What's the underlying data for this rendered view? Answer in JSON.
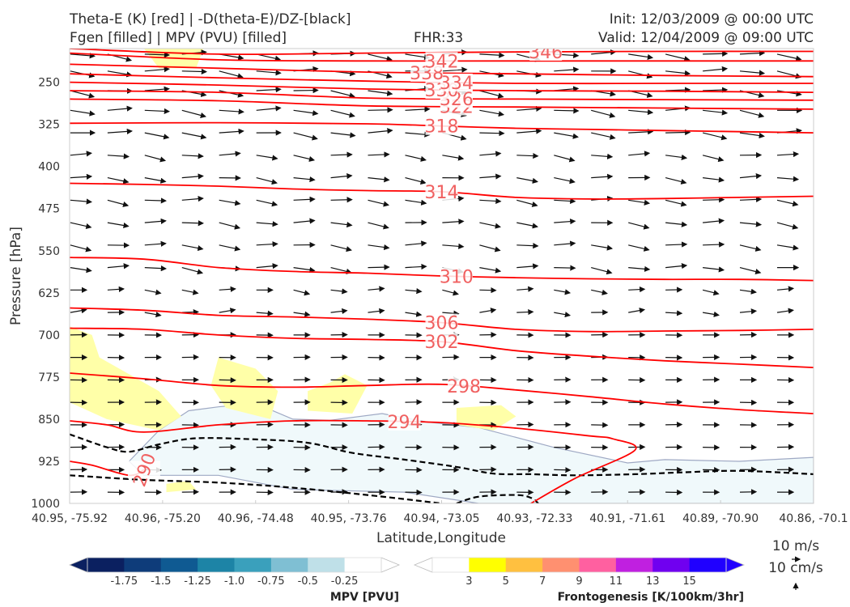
{
  "header": {
    "title_line1": "Theta-E (K) [red] | -D(theta-E)/DZ-[black]",
    "title_line2": "Fgen [filled] | MPV (PVU) [filled]",
    "fhr": "FHR:33",
    "init": "Init: 12/03/2009 @ 00:00 UTC",
    "valid": "Valid: 12/04/2009 @ 09:00 UTC"
  },
  "chart_data": {
    "type": "cross-section",
    "xlabel": "Latitude,Longitude",
    "ylabel": "Pressure [hPa]",
    "ylim": [
      1000,
      190
    ],
    "y_scale": "linear-pressure",
    "x_ticks": [
      "40.95, -75.92",
      "40.96, -75.20",
      "40.96, -74.48",
      "40.95, -73.76",
      "40.94, -73.05",
      "40.93, -72.33",
      "40.91, -71.61",
      "40.89, -70.90",
      "40.86, -70.1"
    ],
    "y_ticks": [
      250,
      325,
      400,
      475,
      550,
      625,
      700,
      775,
      850,
      925,
      1000
    ],
    "theta_e_colour": "#ff0000",
    "theta_e_label_colour": "#f06060",
    "theta_e_contours": [
      {
        "value": 290,
        "label": "290",
        "points": [
          [
            0,
            925
          ],
          [
            0.03,
            932
          ],
          [
            0.08,
            950
          ],
          [
            0.1,
            940
          ]
        ]
      },
      {
        "value": 294,
        "label": "294",
        "points": [
          [
            0,
            853
          ],
          [
            0.05,
            860
          ],
          [
            0.1,
            873
          ],
          [
            0.2,
            860
          ],
          [
            0.3,
            853
          ],
          [
            0.4,
            853
          ],
          [
            0.5,
            856
          ],
          [
            0.6,
            866
          ],
          [
            0.7,
            880
          ],
          [
            0.73,
            885
          ],
          [
            0.76,
            905
          ],
          [
            0.68,
            955
          ],
          [
            0.62,
            1000
          ]
        ]
      },
      {
        "value": 298,
        "label": "298",
        "points": [
          [
            0,
            768
          ],
          [
            0.1,
            778
          ],
          [
            0.2,
            790
          ],
          [
            0.3,
            793
          ],
          [
            0.4,
            790
          ],
          [
            0.5,
            788
          ],
          [
            0.6,
            798
          ],
          [
            0.7,
            810
          ],
          [
            0.8,
            823
          ],
          [
            0.9,
            833
          ],
          [
            1,
            840
          ]
        ]
      },
      {
        "value": 302,
        "label": "302",
        "points": [
          [
            0,
            688
          ],
          [
            0.1,
            690
          ],
          [
            0.2,
            700
          ],
          [
            0.3,
            706
          ],
          [
            0.4,
            708
          ],
          [
            0.5,
            712
          ],
          [
            0.6,
            728
          ],
          [
            0.7,
            738
          ],
          [
            0.8,
            746
          ],
          [
            0.9,
            752
          ],
          [
            1,
            758
          ]
        ]
      },
      {
        "value": 306,
        "label": "306",
        "points": [
          [
            0,
            652
          ],
          [
            0.1,
            656
          ],
          [
            0.2,
            665
          ],
          [
            0.3,
            668
          ],
          [
            0.4,
            672
          ],
          [
            0.5,
            678
          ],
          [
            0.6,
            690
          ],
          [
            0.7,
            694
          ],
          [
            0.8,
            693
          ],
          [
            0.9,
            692
          ],
          [
            1,
            690
          ]
        ]
      },
      {
        "value": 310,
        "label": "310",
        "points": [
          [
            0,
            562
          ],
          [
            0.1,
            565
          ],
          [
            0.2,
            580
          ],
          [
            0.3,
            587
          ],
          [
            0.4,
            590
          ],
          [
            0.5,
            595
          ],
          [
            0.6,
            598
          ],
          [
            0.7,
            600
          ],
          [
            0.8,
            601
          ],
          [
            0.9,
            601
          ],
          [
            1,
            603
          ]
        ]
      },
      {
        "value": 314,
        "label": "314",
        "points": [
          [
            0,
            430
          ],
          [
            0.1,
            432
          ],
          [
            0.2,
            435
          ],
          [
            0.3,
            440
          ],
          [
            0.4,
            443
          ],
          [
            0.5,
            445
          ],
          [
            0.6,
            455
          ],
          [
            0.7,
            458
          ],
          [
            0.8,
            457
          ],
          [
            0.9,
            455
          ],
          [
            1,
            453
          ]
        ]
      },
      {
        "value": 318,
        "label": "318",
        "points": [
          [
            0,
            323
          ],
          [
            0.2,
            322
          ],
          [
            0.4,
            324
          ],
          [
            0.5,
            328
          ],
          [
            0.6,
            332
          ],
          [
            0.7,
            334
          ],
          [
            0.8,
            336
          ],
          [
            0.9,
            338
          ],
          [
            1,
            340
          ]
        ]
      },
      {
        "value": 322,
        "label": "322",
        "points": [
          [
            0,
            280
          ],
          [
            0.2,
            283
          ],
          [
            0.4,
            292
          ],
          [
            0.6,
            294
          ],
          [
            0.8,
            296
          ],
          [
            1,
            298
          ]
        ]
      },
      {
        "value": 326,
        "label": "326",
        "points": [
          [
            0,
            265
          ],
          [
            0.2,
            268
          ],
          [
            0.4,
            278
          ],
          [
            0.6,
            280
          ],
          [
            0.8,
            281
          ],
          [
            1,
            282
          ]
        ]
      },
      {
        "value": 330,
        "label": "330",
        "points": [
          [
            0,
            250
          ],
          [
            0.2,
            255
          ],
          [
            0.4,
            262
          ],
          [
            0.6,
            265
          ],
          [
            0.8,
            266
          ],
          [
            1,
            268
          ]
        ]
      },
      {
        "value": 334,
        "label": "334",
        "points": [
          [
            0,
            235
          ],
          [
            0.2,
            242
          ],
          [
            0.4,
            248
          ],
          [
            0.6,
            252
          ],
          [
            0.8,
            252
          ],
          [
            1,
            252
          ]
        ]
      },
      {
        "value": 338,
        "label": "338",
        "points": [
          [
            0,
            218
          ],
          [
            0.2,
            225
          ],
          [
            0.4,
            232
          ],
          [
            0.6,
            235
          ],
          [
            0.8,
            238
          ],
          [
            1,
            240
          ]
        ]
      },
      {
        "value": 342,
        "label": "342",
        "points": [
          [
            0,
            198
          ],
          [
            0.2,
            210
          ],
          [
            0.4,
            212
          ],
          [
            0.6,
            212
          ],
          [
            0.8,
            212
          ],
          [
            1,
            212
          ]
        ]
      },
      {
        "value": 346,
        "label": "346",
        "points": [
          [
            0,
            190
          ],
          [
            0.2,
            200
          ],
          [
            0.4,
            198
          ],
          [
            0.6,
            196
          ],
          [
            0.8,
            195
          ],
          [
            1,
            195
          ]
        ]
      }
    ],
    "stability_contour": {
      "colour": "#000000",
      "style": "dashed",
      "paths": [
        [
          [
            0,
            877
          ],
          [
            0.05,
            900
          ],
          [
            0.08,
            908
          ],
          [
            0.12,
            895
          ],
          [
            0.17,
            884
          ],
          [
            0.25,
            886
          ],
          [
            0.32,
            892
          ],
          [
            0.38,
            910
          ],
          [
            0.45,
            922
          ],
          [
            0.52,
            935
          ],
          [
            0.57,
            947
          ],
          [
            0.62,
            948
          ],
          [
            0.68,
            950
          ],
          [
            0.76,
            948
          ],
          [
            0.82,
            945
          ],
          [
            0.9,
            942
          ],
          [
            1,
            948
          ]
        ],
        [
          [
            0,
            950
          ],
          [
            0.1,
            958
          ],
          [
            0.2,
            963
          ],
          [
            0.3,
            972
          ],
          [
            0.4,
            985
          ],
          [
            0.5,
            1000
          ]
        ],
        [
          [
            0.52,
            1000
          ],
          [
            0.55,
            988
          ],
          [
            0.6,
            985
          ],
          [
            0.62,
            990
          ],
          [
            0.63,
            1000
          ]
        ]
      ]
    },
    "mpv_shading": {
      "colour": "#f0f9fb",
      "edge": "#9fa9c4",
      "regions": [
        [
          [
            0.08,
            925
          ],
          [
            0.12,
            870
          ],
          [
            0.16,
            835
          ],
          [
            0.2,
            828
          ],
          [
            0.25,
            822
          ],
          [
            0.3,
            850
          ],
          [
            0.35,
            852
          ],
          [
            0.42,
            840
          ],
          [
            0.48,
            855
          ],
          [
            0.55,
            865
          ],
          [
            0.65,
            900
          ],
          [
            0.75,
            928
          ],
          [
            0.8,
            922
          ],
          [
            0.9,
            925
          ],
          [
            1,
            918
          ],
          [
            1,
            1000
          ],
          [
            0.62,
            1000
          ],
          [
            0.55,
            1000
          ],
          [
            0.45,
            980
          ],
          [
            0.3,
            975
          ],
          [
            0.2,
            950
          ],
          [
            0.1,
            950
          ]
        ]
      ]
    },
    "fgen_shading": {
      "colour": "#ffffa8",
      "regions": [
        [
          [
            0,
            685
          ],
          [
            0.03,
            700
          ],
          [
            0.04,
            740
          ],
          [
            0.08,
            770
          ],
          [
            0.12,
            800
          ],
          [
            0.15,
            845
          ],
          [
            0.12,
            870
          ],
          [
            0.05,
            850
          ],
          [
            0,
            820
          ]
        ],
        [
          [
            0.2,
            740
          ],
          [
            0.25,
            760
          ],
          [
            0.28,
            800
          ],
          [
            0.27,
            850
          ],
          [
            0.21,
            830
          ],
          [
            0.19,
            790
          ]
        ],
        [
          [
            0.32,
            800
          ],
          [
            0.35,
            785
          ],
          [
            0.37,
            770
          ],
          [
            0.4,
            790
          ],
          [
            0.38,
            840
          ],
          [
            0.32,
            835
          ]
        ],
        [
          [
            0.52,
            830
          ],
          [
            0.58,
            825
          ],
          [
            0.6,
            845
          ],
          [
            0.57,
            870
          ],
          [
            0.52,
            860
          ]
        ],
        [
          [
            0.1,
            190
          ],
          [
            0.18,
            190
          ],
          [
            0.17,
            225
          ],
          [
            0.12,
            225
          ]
        ],
        [
          [
            0.13,
            965
          ],
          [
            0.16,
            960
          ],
          [
            0.17,
            975
          ],
          [
            0.13,
            980
          ]
        ]
      ]
    },
    "wind_vectors": {
      "colour": "#111111",
      "columns": 20,
      "levels": [
        200,
        230,
        265,
        300,
        340,
        380,
        420,
        460,
        500,
        540,
        580,
        620,
        660,
        700,
        740,
        780,
        820,
        860,
        900,
        940,
        980
      ]
    },
    "colorbars": [
      {
        "name": "MPV [PVU]",
        "colours": [
          "#0b2060",
          "#0e3c7a",
          "#0f5a92",
          "#1d84a6",
          "#3aa0bc",
          "#7fbfd3",
          "#bfe0e8",
          "#ffffff"
        ],
        "labels": [
          "-1.75",
          "-1.5",
          "-1.25",
          "-1.0",
          "-0.75",
          "-0.5",
          "-0.25"
        ],
        "extend": "both"
      },
      {
        "name": "Frontogenesis [K/100km/3hr]",
        "colours": [
          "#ffffff",
          "#ffff00",
          "#ffc040",
          "#ff9070",
          "#ff60a0",
          "#c020e0",
          "#7000f0",
          "#2000ff"
        ],
        "labels": [
          "3",
          "5",
          "7",
          "9",
          "11",
          "13",
          "15"
        ],
        "extend": "both"
      }
    ],
    "vector_key": {
      "horizontal": "10 m/s",
      "vertical": "10 cm/s"
    }
  }
}
